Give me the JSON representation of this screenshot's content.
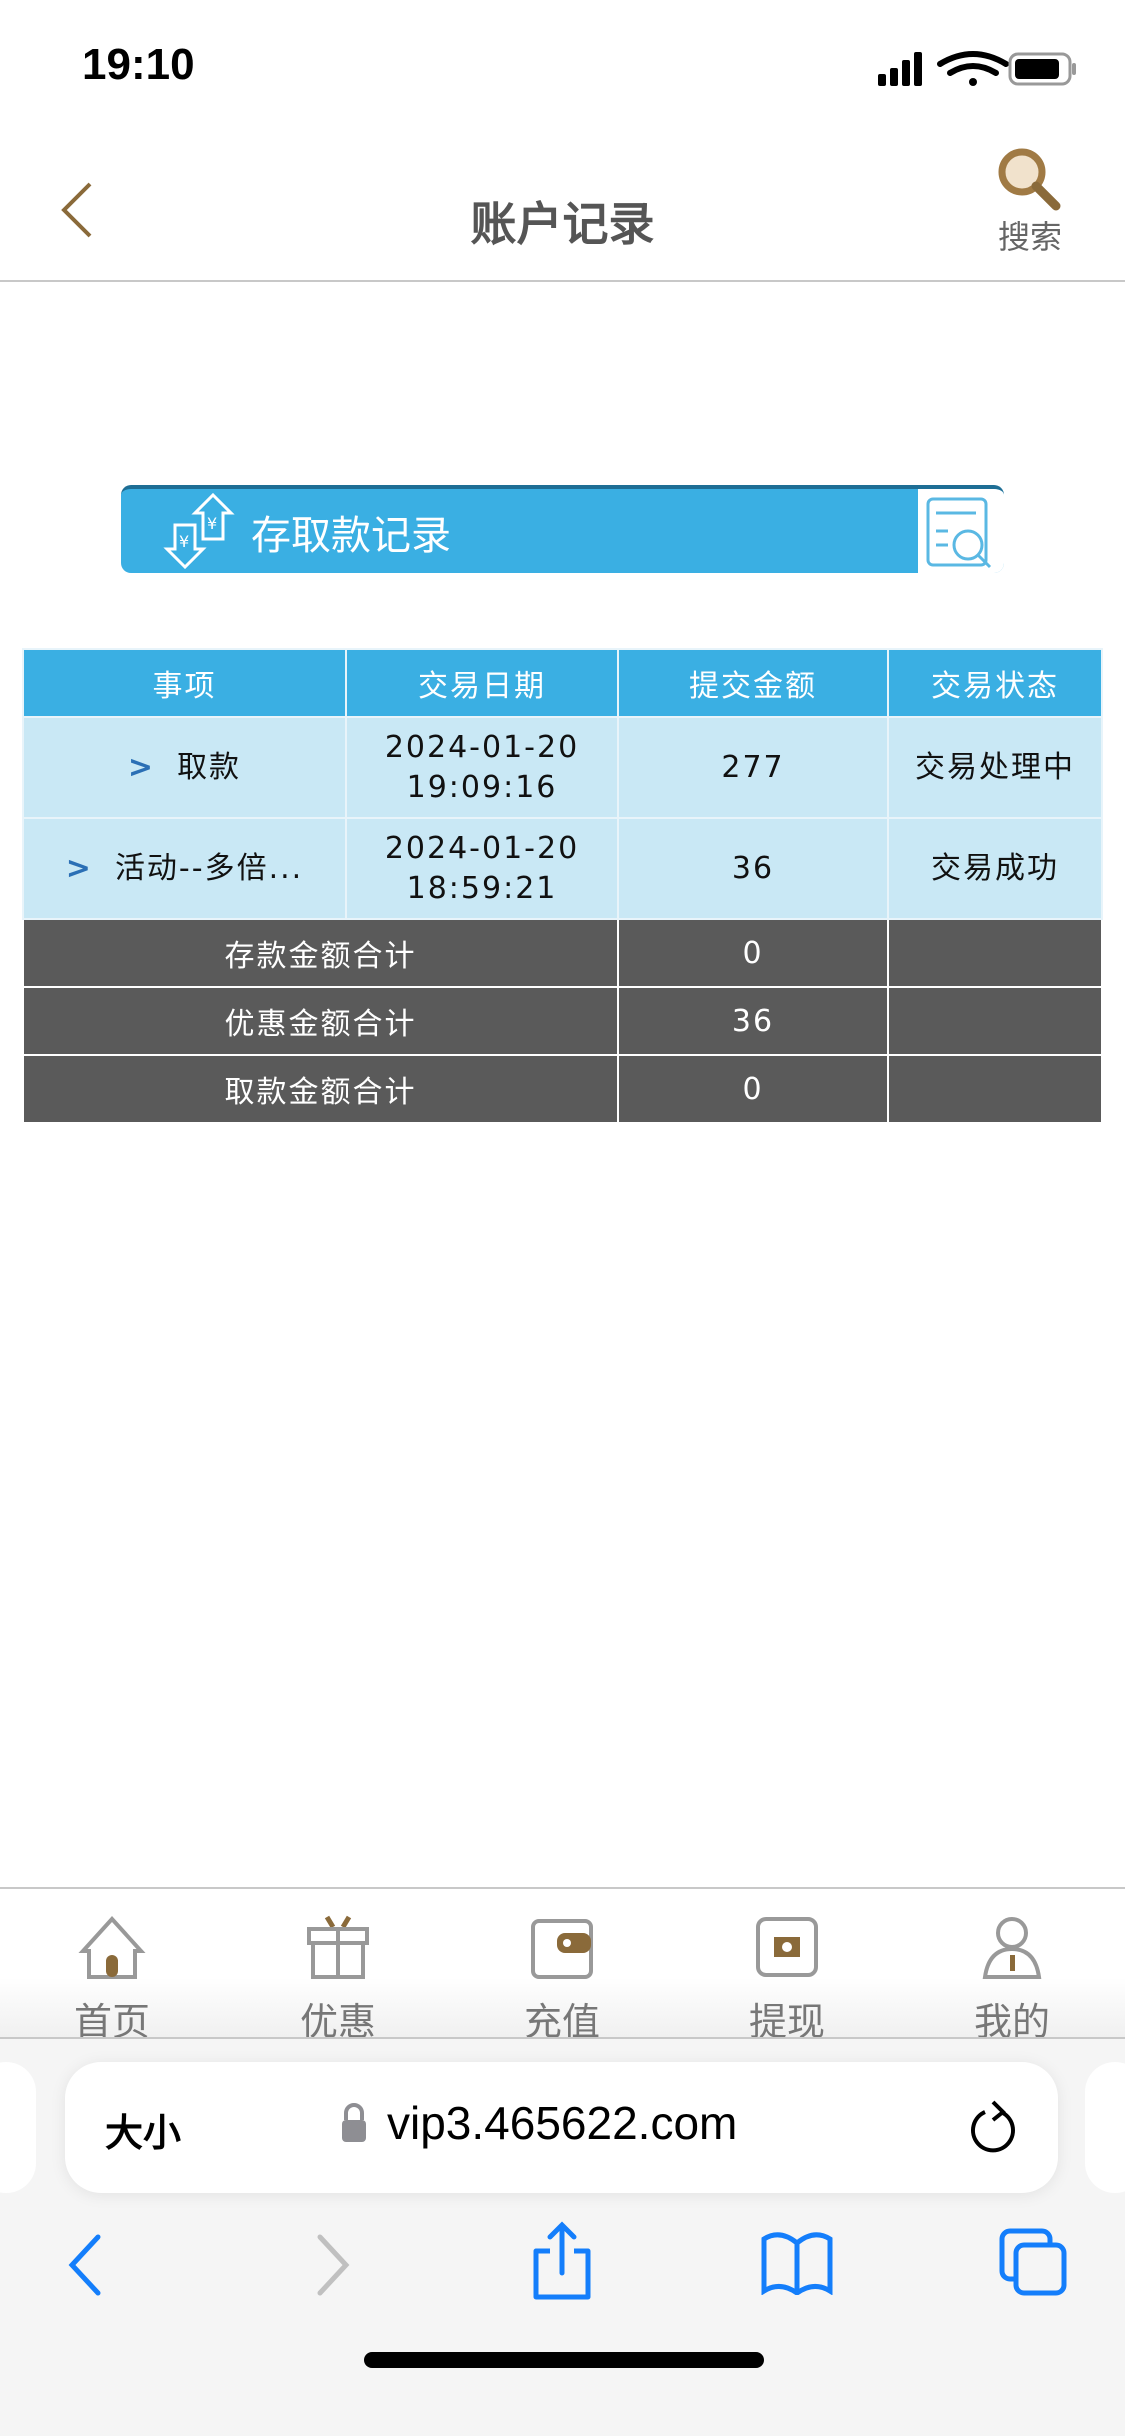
{
  "status_bar": {
    "time": "19:10"
  },
  "header": {
    "title": "账户记录",
    "search_label": "搜索"
  },
  "banner": {
    "title": "存取款记录"
  },
  "table": {
    "columns": [
      "事项",
      "交易日期",
      "提交金额",
      "交易状态"
    ],
    "rows": [
      {
        "item": "取款",
        "date": "2024-01-20",
        "time": "19:09:16",
        "amount": "277",
        "status": "交易处理中"
      },
      {
        "item": "活动--多倍...",
        "date": "2024-01-20",
        "time": "18:59:21",
        "amount": "36",
        "status": "交易成功"
      }
    ],
    "summary": [
      {
        "label": "存款金额合计",
        "value": "0"
      },
      {
        "label": "优惠金额合计",
        "value": "36"
      },
      {
        "label": "取款金额合计",
        "value": "0"
      }
    ]
  },
  "tabbar": {
    "items": [
      {
        "label": "首页",
        "icon": "home-icon"
      },
      {
        "label": "优惠",
        "icon": "gift-icon"
      },
      {
        "label": "充值",
        "icon": "wallet-icon"
      },
      {
        "label": "提现",
        "icon": "cash-icon"
      },
      {
        "label": "我的",
        "icon": "user-icon"
      }
    ]
  },
  "browser": {
    "text_size": "大小",
    "url": "vip3.465622.com"
  },
  "colors": {
    "accent": "#3aafe3",
    "brand_brown": "#8a6a3a",
    "success": "#2a9a7a",
    "summary_bg": "#5a5a5a"
  }
}
